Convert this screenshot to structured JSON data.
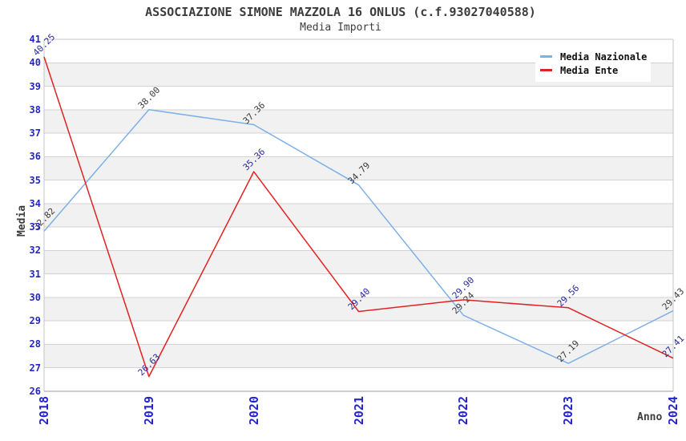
{
  "title": "ASSOCIAZIONE SIMONE MAZZOLA 16 ONLUS (c.f.93027040588)",
  "subtitle": "Media Importi",
  "axes": {
    "y_label": "Media",
    "x_label": "Anno",
    "tick_color": "#2424cc"
  },
  "legend": {
    "position": "top-right",
    "items": [
      {
        "label": "Media Nazionale",
        "color": "#7db0e8"
      },
      {
        "label": "Media Ente",
        "color": "#e02222"
      }
    ]
  },
  "colors": {
    "title": "#3c3c3c",
    "grid": "#d2d2d2",
    "band": "#f1f1f1",
    "band_alt": "#ffffff",
    "border": "#c4c4c4",
    "border_bottom": "#9a9a9a",
    "legend_text": "#101010"
  },
  "chart_data": {
    "type": "line",
    "categories": [
      "2018",
      "2019",
      "2020",
      "2021",
      "2022",
      "2023",
      "2024"
    ],
    "series": [
      {
        "name": "Media Nazionale",
        "color": "#7db0e8",
        "label_color": "#3c3c3c",
        "values": [
          32.82,
          38.0,
          37.36,
          34.79,
          29.24,
          27.19,
          29.43
        ]
      },
      {
        "name": "Media Ente",
        "color": "#e02222",
        "label_color": "#29299a",
        "values": [
          40.25,
          26.63,
          35.36,
          29.4,
          29.9,
          29.56,
          27.41
        ]
      }
    ],
    "title": "ASSOCIAZIONE SIMONE MAZZOLA 16 ONLUS (c.f.93027040588)",
    "subtitle": "Media Importi",
    "xlabel": "Anno",
    "ylabel": "Media",
    "ylim": [
      26,
      41
    ],
    "y_tick_step": 1,
    "grid": true,
    "bands": "alternating horizontal 1-unit stripes, white at top",
    "point_label_format": "2 decimals, rotated 45deg",
    "legend_position": "top-right"
  }
}
